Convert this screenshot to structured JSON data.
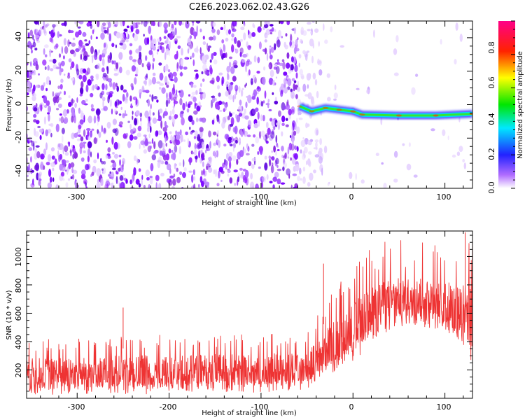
{
  "title": "C2E6.2023.062.02.43.G26",
  "chart_data": [
    {
      "type": "heatmap",
      "xlabel": "Height of straight line (km)",
      "ylabel": "Frequency (Hz)",
      "xlim": [
        -355,
        130
      ],
      "ylim": [
        -50,
        50
      ],
      "x_ticks": [
        "-300",
        "-200",
        "-100",
        "0",
        "100"
      ],
      "y_ticks": [
        "-40",
        "-20",
        "0",
        "20",
        "40"
      ],
      "colorbar": {
        "label": "Normalized spectral amplitude",
        "range": [
          0,
          1
        ],
        "ticks": [
          "0.0",
          "0.2",
          "0.4",
          "0.6",
          "0.8"
        ],
        "colormap": "rainbow (white, violet, blue, cyan, green, yellow, red, magenta)"
      },
      "signal_track": [
        {
          "x": -58,
          "freq": -1,
          "amplitude": 0.35
        },
        {
          "x": -45,
          "freq": -4,
          "amplitude": 0.45
        },
        {
          "x": -30,
          "freq": -2,
          "amplitude": 0.5
        },
        {
          "x": -15,
          "freq": -3,
          "amplitude": 0.55
        },
        {
          "x": 0,
          "freq": -4,
          "amplitude": 0.6
        },
        {
          "x": 10,
          "freq": -6,
          "amplitude": 0.55
        },
        {
          "x": 50,
          "freq": -6.5,
          "amplitude": 0.6
        },
        {
          "x": 90,
          "freq": -6.5,
          "amplitude": 0.65
        },
        {
          "x": 130,
          "freq": -5.5,
          "amplitude": 0.6
        }
      ]
    },
    {
      "type": "line",
      "xlabel": "Height of straight line (km)",
      "ylabel": "SNR (10 * v/v)",
      "xlim": [
        -355,
        130
      ],
      "ylim": [
        0,
        1180
      ],
      "x_ticks": [
        "-300",
        "-200",
        "-100",
        "0",
        "100"
      ],
      "y_ticks": [
        "200",
        "400",
        "600",
        "800",
        "1000"
      ],
      "color": "#ee3333",
      "envelope": [
        {
          "x": -355,
          "low": 20,
          "high": 330
        },
        {
          "x": -300,
          "low": 20,
          "high": 340
        },
        {
          "x": -200,
          "low": 30,
          "high": 360
        },
        {
          "x": -100,
          "low": 40,
          "high": 360
        },
        {
          "x": -50,
          "low": 50,
          "high": 380
        },
        {
          "x": -30,
          "low": 150,
          "high": 550
        },
        {
          "x": 0,
          "low": 250,
          "high": 750
        },
        {
          "x": 30,
          "low": 450,
          "high": 900
        },
        {
          "x": 60,
          "low": 520,
          "high": 920
        },
        {
          "x": 100,
          "low": 480,
          "high": 880
        },
        {
          "x": 130,
          "low": 250,
          "high": 950
        }
      ],
      "peaks": [
        {
          "x": -250,
          "y": 640
        },
        {
          "x": -32,
          "y": 950
        },
        {
          "x": 122,
          "y": 1170
        }
      ]
    }
  ]
}
